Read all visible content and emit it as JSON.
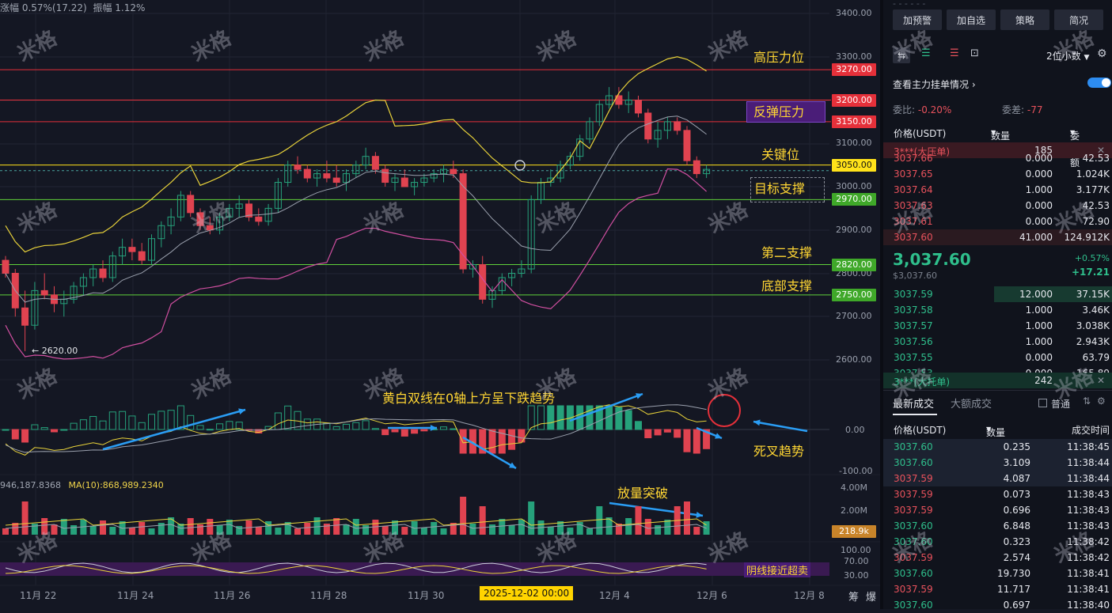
{
  "header": {
    "change_label": "涨幅 0.57%(17.22)",
    "amplitude_label": "振幅 1.12%"
  },
  "price_axis": [
    "3400.00",
    "3300.00",
    "3200.00",
    "3100.00",
    "3000.00",
    "2900.00",
    "2800.00",
    "2700.00",
    "2600.00"
  ],
  "price_labels": [
    {
      "text": "3270.00",
      "color": "#e5303a"
    },
    {
      "text": "3200.00",
      "color": "#e5303a"
    },
    {
      "text": "3150.00",
      "color": "#e5303a"
    },
    {
      "text": "3050.00",
      "color": "#ffe21a"
    },
    {
      "text": "2970.00",
      "color": "#3fa829"
    },
    {
      "text": "2820.00",
      "color": "#3fa829"
    },
    {
      "text": "2750.00",
      "color": "#3fa829"
    }
  ],
  "annotations": {
    "high_pressure": "高压力位",
    "rebound_pressure": "反弹压力",
    "key_level": "关键位",
    "target_support": "目标支撑",
    "second_support": "第二支撑",
    "bottom_support": "底部支撑",
    "macd_note": "黄白双线在0轴上方呈下跌趋势",
    "death_cross": "死叉趋势",
    "volume_break": "放量突破",
    "oversold": "阴线接近超卖",
    "low_marker": "← 2620.00"
  },
  "macd_axis": [
    "0.00",
    "-100.00"
  ],
  "volume_header": {
    "left": "946,187.8368",
    "ma": "MA(10):868,989.2340"
  },
  "volume_axis": [
    "4.00M",
    "2.00M"
  ],
  "volume_current": "218.9k",
  "rsi_axis": [
    "100.00",
    "70.00",
    "30.00"
  ],
  "time_axis": [
    "11月 22",
    "11月 24",
    "11月 26",
    "11月 28",
    "11月 30",
    "12月 4",
    "12月 6",
    "12月 8"
  ],
  "crosshair_time": "2025-12-02 00:00",
  "bottom_right": [
    "筹",
    "爆"
  ],
  "watermark": "米格",
  "panel": {
    "buttons": [
      "加预警",
      "加自选",
      "策略",
      "简况"
    ],
    "decimals": "2位小数",
    "view_orders": "查看主力挂单情况",
    "ratio_label": "委比:",
    "ratio_value": "-0.20%",
    "diff_label": "委差:",
    "diff_value": "-77",
    "col_price": "价格(USDT)",
    "col_qty": "数量 (ETH)",
    "col_total": "委托额",
    "big_ask": {
      "label": "3***(大压单)",
      "qty": "185"
    },
    "asks": [
      {
        "p": "3037.66",
        "q": "0.000",
        "t": "42.53"
      },
      {
        "p": "3037.65",
        "q": "0.000",
        "t": "1.024K"
      },
      {
        "p": "3037.64",
        "q": "1.000",
        "t": "3.177K"
      },
      {
        "p": "3037.63",
        "q": "0.000",
        "t": "42.53"
      },
      {
        "p": "3037.61",
        "q": "0.000",
        "t": "72.90"
      },
      {
        "p": "3037.60",
        "q": "41.000",
        "t": "124.912K"
      }
    ],
    "last_price": "3,037.60",
    "last_sub": "$3,037.60",
    "chg_pct": "+0.57%",
    "chg_abs": "+17.21",
    "bids": [
      {
        "p": "3037.59",
        "q": "12.000",
        "t": "37.15K"
      },
      {
        "p": "3037.58",
        "q": "1.000",
        "t": "3.46K"
      },
      {
        "p": "3037.57",
        "q": "1.000",
        "t": "3.038K"
      },
      {
        "p": "3037.56",
        "q": "1.000",
        "t": "2.943K"
      },
      {
        "p": "3037.55",
        "q": "0.000",
        "t": "63.79"
      },
      {
        "p": "3037.53",
        "q": "0.000",
        "t": "165.89"
      }
    ],
    "big_bid": {
      "label": "3***(大托单)",
      "qty": "242"
    },
    "tab_latest": "最新成交",
    "tab_large": "大额成交",
    "normal": "普通",
    "trade_cols": {
      "price": "价格(USDT)",
      "qty": "数量(ETH)",
      "time": "成交时间"
    },
    "trades": [
      {
        "p": "3037.60",
        "q": "0.235",
        "t": "11:38:45",
        "side": "buy"
      },
      {
        "p": "3037.60",
        "q": "3.109",
        "t": "11:38:44",
        "side": "buy"
      },
      {
        "p": "3037.59",
        "q": "4.087",
        "t": "11:38:44",
        "side": "sell"
      },
      {
        "p": "3037.59",
        "q": "0.073",
        "t": "11:38:43",
        "side": "sell"
      },
      {
        "p": "3037.59",
        "q": "0.696",
        "t": "11:38:43",
        "side": "sell"
      },
      {
        "p": "3037.60",
        "q": "6.848",
        "t": "11:38:43",
        "side": "buy"
      },
      {
        "p": "3037.60",
        "q": "0.323",
        "t": "11:38:42",
        "side": "buy"
      },
      {
        "p": "3037.59",
        "q": "2.574",
        "t": "11:38:42",
        "side": "sell"
      },
      {
        "p": "3037.60",
        "q": "19.730",
        "t": "11:38:41",
        "side": "buy"
      },
      {
        "p": "3037.59",
        "q": "11.717",
        "t": "11:38:41",
        "side": "sell"
      },
      {
        "p": "3037.60",
        "q": "0.697",
        "t": "11:38:40",
        "side": "buy"
      }
    ]
  },
  "chart_data": {
    "type": "candlestick",
    "ylim": [
      2560,
      3420
    ],
    "candles_note_none": "",
    "support_resistance": [
      3270,
      3200,
      3150,
      3050,
      2970,
      2820,
      2750
    ],
    "ohlc": [
      [
        2830,
        2840,
        2790,
        2800
      ],
      [
        2800,
        2810,
        2700,
        2720
      ],
      [
        2720,
        2760,
        2620,
        2680
      ],
      [
        2680,
        2780,
        2670,
        2760
      ],
      [
        2760,
        2800,
        2740,
        2750
      ],
      [
        2750,
        2770,
        2710,
        2730
      ],
      [
        2730,
        2760,
        2700,
        2740
      ],
      [
        2740,
        2780,
        2730,
        2770
      ],
      [
        2770,
        2800,
        2750,
        2790
      ],
      [
        2790,
        2820,
        2770,
        2810
      ],
      [
        2810,
        2830,
        2780,
        2790
      ],
      [
        2790,
        2850,
        2780,
        2840
      ],
      [
        2840,
        2880,
        2820,
        2860
      ],
      [
        2860,
        2880,
        2830,
        2850
      ],
      [
        2850,
        2870,
        2820,
        2830
      ],
      [
        2830,
        2890,
        2820,
        2880
      ],
      [
        2880,
        2920,
        2860,
        2910
      ],
      [
        2910,
        2950,
        2890,
        2930
      ],
      [
        2930,
        2990,
        2920,
        2980
      ],
      [
        2980,
        2990,
        2930,
        2940
      ],
      [
        2940,
        2950,
        2900,
        2910
      ],
      [
        2910,
        2930,
        2890,
        2900
      ],
      [
        2900,
        2940,
        2890,
        2930
      ],
      [
        2930,
        2960,
        2920,
        2950
      ],
      [
        2950,
        2980,
        2930,
        2960
      ],
      [
        2960,
        2970,
        2920,
        2930
      ],
      [
        2930,
        2950,
        2910,
        2920
      ],
      [
        2920,
        2960,
        2910,
        2950
      ],
      [
        2950,
        3020,
        2940,
        3010
      ],
      [
        3010,
        3060,
        3000,
        3050
      ],
      [
        3050,
        3070,
        3030,
        3040
      ],
      [
        3040,
        3050,
        3010,
        3020
      ],
      [
        3020,
        3040,
        3000,
        3030
      ],
      [
        3030,
        3060,
        3010,
        3020
      ],
      [
        3020,
        3050,
        3000,
        3010
      ],
      [
        3010,
        3040,
        2990,
        3030
      ],
      [
        3030,
        3060,
        3020,
        3050
      ],
      [
        3050,
        3090,
        3040,
        3070
      ],
      [
        3070,
        3080,
        3030,
        3040
      ],
      [
        3040,
        3050,
        3000,
        3010
      ],
      [
        3010,
        3030,
        2990,
        3020
      ],
      [
        3020,
        3040,
        3000,
        3000
      ],
      [
        3000,
        3020,
        2980,
        3010
      ],
      [
        3010,
        3030,
        3000,
        3020
      ],
      [
        3020,
        3040,
        3010,
        3030
      ],
      [
        3030,
        3050,
        3010,
        3040
      ],
      [
        3040,
        3060,
        3020,
        3030
      ],
      [
        3030,
        3040,
        2800,
        2810
      ],
      [
        2810,
        2830,
        2790,
        2820
      ],
      [
        2820,
        2840,
        2730,
        2740
      ],
      [
        2740,
        2770,
        2720,
        2760
      ],
      [
        2760,
        2800,
        2750,
        2790
      ],
      [
        2790,
        2810,
        2770,
        2800
      ],
      [
        2800,
        2830,
        2790,
        2810
      ],
      [
        2810,
        2980,
        2800,
        2970
      ],
      [
        2970,
        3020,
        2960,
        3010
      ],
      [
        3010,
        3040,
        3000,
        3020
      ],
      [
        3020,
        3060,
        3010,
        3050
      ],
      [
        3050,
        3080,
        3040,
        3070
      ],
      [
        3070,
        3120,
        3060,
        3110
      ],
      [
        3110,
        3160,
        3100,
        3150
      ],
      [
        3150,
        3200,
        3140,
        3190
      ],
      [
        3190,
        3230,
        3180,
        3210
      ],
      [
        3210,
        3230,
        3180,
        3190
      ],
      [
        3190,
        3220,
        3170,
        3200
      ],
      [
        3200,
        3210,
        3160,
        3170
      ],
      [
        3170,
        3180,
        3100,
        3110
      ],
      [
        3110,
        3150,
        3090,
        3130
      ],
      [
        3130,
        3160,
        3110,
        3150
      ],
      [
        3150,
        3160,
        3120,
        3130
      ],
      [
        3130,
        3140,
        3050,
        3060
      ],
      [
        3060,
        3070,
        3020,
        3030
      ],
      [
        3030,
        3050,
        3020,
        3040
      ]
    ]
  }
}
